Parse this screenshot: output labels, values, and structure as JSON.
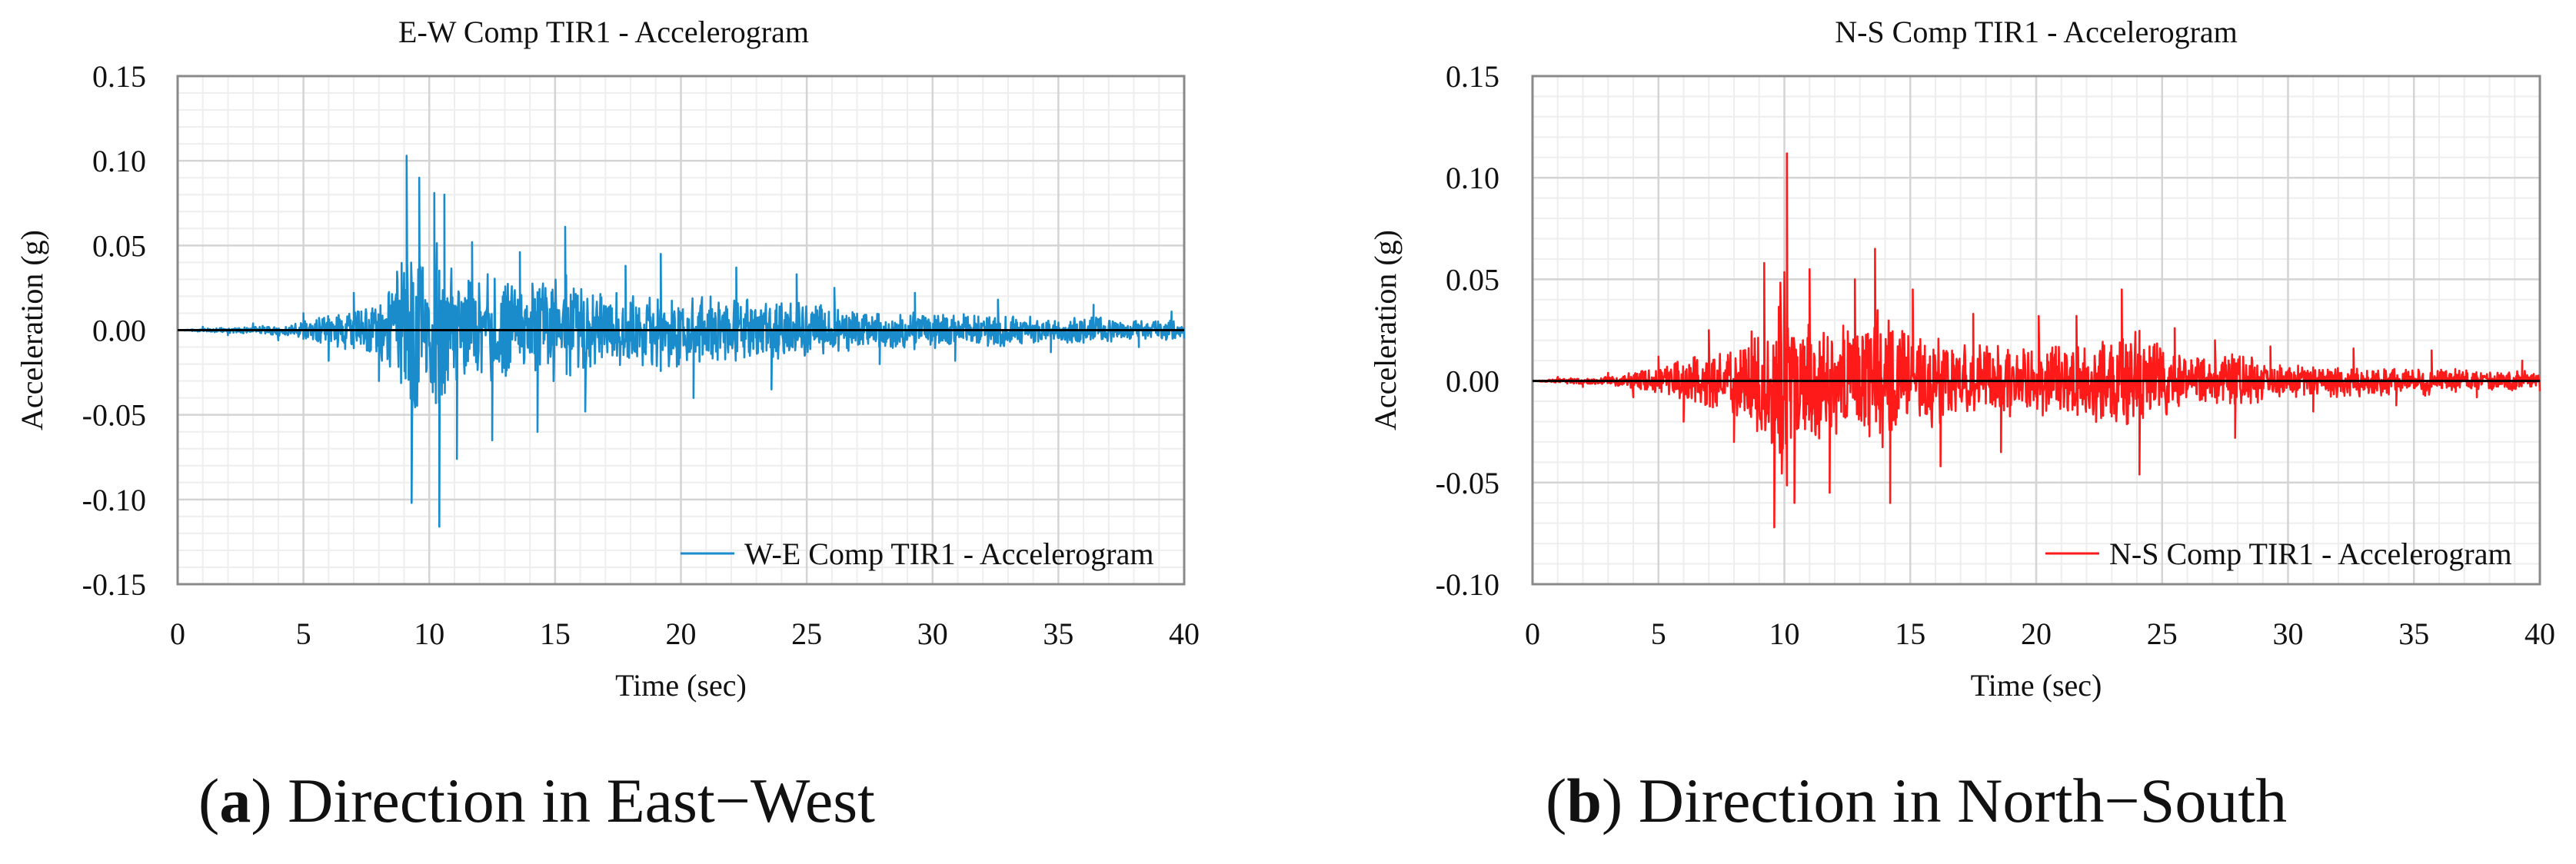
{
  "chart_data": [
    {
      "type": "line",
      "title": "E-W Comp TIR1 - Accelerogram",
      "xlabel": "Time (sec)",
      "ylabel": "Acceleration (g)",
      "xlim": [
        0,
        40
      ],
      "ylim": [
        -0.15,
        0.15
      ],
      "xticks": [
        0,
        5,
        10,
        15,
        20,
        25,
        30,
        35,
        40
      ],
      "yticks": [
        -0.15,
        -0.1,
        -0.05,
        0.0,
        0.05,
        0.1,
        0.15
      ],
      "tick_labels_x": [
        "0",
        "5",
        "10",
        "15",
        "20",
        "25",
        "30",
        "35",
        "40"
      ],
      "tick_labels_y": [
        "-0.15",
        "-0.10",
        "-0.05",
        "0.00",
        "0.05",
        "0.10",
        "0.15"
      ],
      "grid": true,
      "legend_position": "bottom-right",
      "series": [
        {
          "name": "W-E Comp TIR1 - Accelerogram",
          "color": "#1a8ccc",
          "x": [
            0,
            1,
            2,
            3,
            4,
            5,
            6,
            7,
            8,
            9.1,
            9.3,
            9.6,
            10.2,
            10.4,
            10.6,
            11.1,
            11.7,
            12.5,
            13.6,
            14.3,
            15.4,
            16.2,
            17.8,
            19.2,
            20.5,
            22.2,
            23.6,
            24.6,
            26.1,
            27.9,
            29.3,
            30.9,
            32.6,
            34.7,
            36.4,
            38.2,
            39.5,
            40
          ],
          "values": [
            0.0,
            0.002,
            -0.003,
            0.004,
            -0.006,
            0.01,
            -0.018,
            0.022,
            -0.03,
            0.103,
            -0.102,
            0.09,
            0.081,
            -0.116,
            0.08,
            -0.076,
            0.052,
            -0.065,
            0.046,
            -0.06,
            0.061,
            -0.048,
            0.038,
            0.045,
            -0.04,
            0.037,
            -0.035,
            0.033,
            0.025,
            -0.02,
            0.022,
            -0.018,
            0.018,
            -0.013,
            0.015,
            -0.01,
            0.011,
            -0.005
          ]
        }
      ]
    },
    {
      "type": "line",
      "title": "N-S Comp TIR1 - Accelerogram",
      "xlabel": "Time (sec)",
      "ylabel": "Acceleration (g)",
      "xlim": [
        0,
        40
      ],
      "ylim": [
        -0.1,
        0.15
      ],
      "xticks": [
        0,
        5,
        10,
        15,
        20,
        25,
        30,
        35,
        40
      ],
      "yticks": [
        -0.1,
        -0.05,
        0.0,
        0.05,
        0.1,
        0.15
      ],
      "tick_labels_x": [
        "0",
        "5",
        "10",
        "15",
        "20",
        "25",
        "30",
        "35",
        "40"
      ],
      "tick_labels_y": [
        "-0.10",
        "-0.05",
        "0.00",
        "0.05",
        "0.10",
        "0.15"
      ],
      "grid": true,
      "legend_position": "bottom-right",
      "series": [
        {
          "name": "N-S Comp TIR1 - Accelerogram",
          "color": "#ff1a1a",
          "x": [
            0,
            1,
            2,
            3,
            4,
            5,
            6,
            7,
            8,
            9.2,
            9.6,
            10.1,
            10.4,
            11.0,
            11.8,
            12.8,
            13.6,
            14.2,
            15.1,
            16.2,
            17.5,
            18.6,
            20.1,
            21.6,
            23.4,
            24.1,
            25.5,
            27.1,
            27.9,
            29.3,
            31.0,
            32.6,
            34.3,
            35.7,
            37.5,
            39.3,
            40
          ],
          "values": [
            0.0,
            0.002,
            -0.003,
            0.004,
            -0.008,
            0.012,
            -0.02,
            0.025,
            -0.03,
            0.058,
            -0.072,
            0.112,
            -0.06,
            0.055,
            -0.055,
            0.05,
            0.065,
            -0.06,
            0.045,
            -0.042,
            0.033,
            -0.035,
            0.032,
            0.032,
            0.045,
            -0.046,
            0.026,
            0.02,
            -0.028,
            0.017,
            -0.015,
            0.016,
            -0.012,
            0.015,
            -0.008,
            0.01,
            -0.005
          ]
        }
      ]
    }
  ],
  "captions": [
    {
      "letter": "a",
      "text": ") Direction in East−West"
    },
    {
      "letter": "b",
      "text": ") Direction in North−South"
    }
  ]
}
